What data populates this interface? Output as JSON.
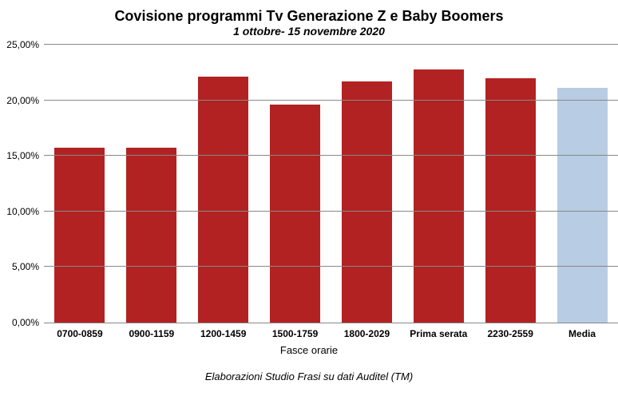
{
  "chart": {
    "type": "bar",
    "title": "Covisione programmi Tv Generazione Z e Baby Boomers",
    "title_fontsize": 18,
    "subtitle": "1 ottobre- 15 novembre 2020",
    "subtitle_fontsize": 14,
    "x_axis_label": "Fasce orarie",
    "footer_note": "Elaborazioni Studio Frasi su dati Auditel (TM)",
    "categories": [
      "0700-0859",
      "0900-1159",
      "1200-1459",
      "1500-1759",
      "1800-2029",
      "Prima serata",
      "2230-2559",
      "Media"
    ],
    "values": [
      15.7,
      15.7,
      22.1,
      19.6,
      21.7,
      22.8,
      22.0,
      21.1
    ],
    "bar_colors": [
      "#b22222",
      "#b22222",
      "#b22222",
      "#b22222",
      "#b22222",
      "#b22222",
      "#b22222",
      "#b8cce4"
    ],
    "ylim": [
      0,
      25
    ],
    "ytick_step": 5,
    "ytick_labels": [
      "0,00%",
      "5,00%",
      "10,00%",
      "15,00%",
      "20,00%",
      "25,00%"
    ],
    "background_color": "#ffffff",
    "grid_color": "#888888",
    "bar_width": 0.7,
    "label_fontsize": 12,
    "axis_title_fontsize": 13
  }
}
